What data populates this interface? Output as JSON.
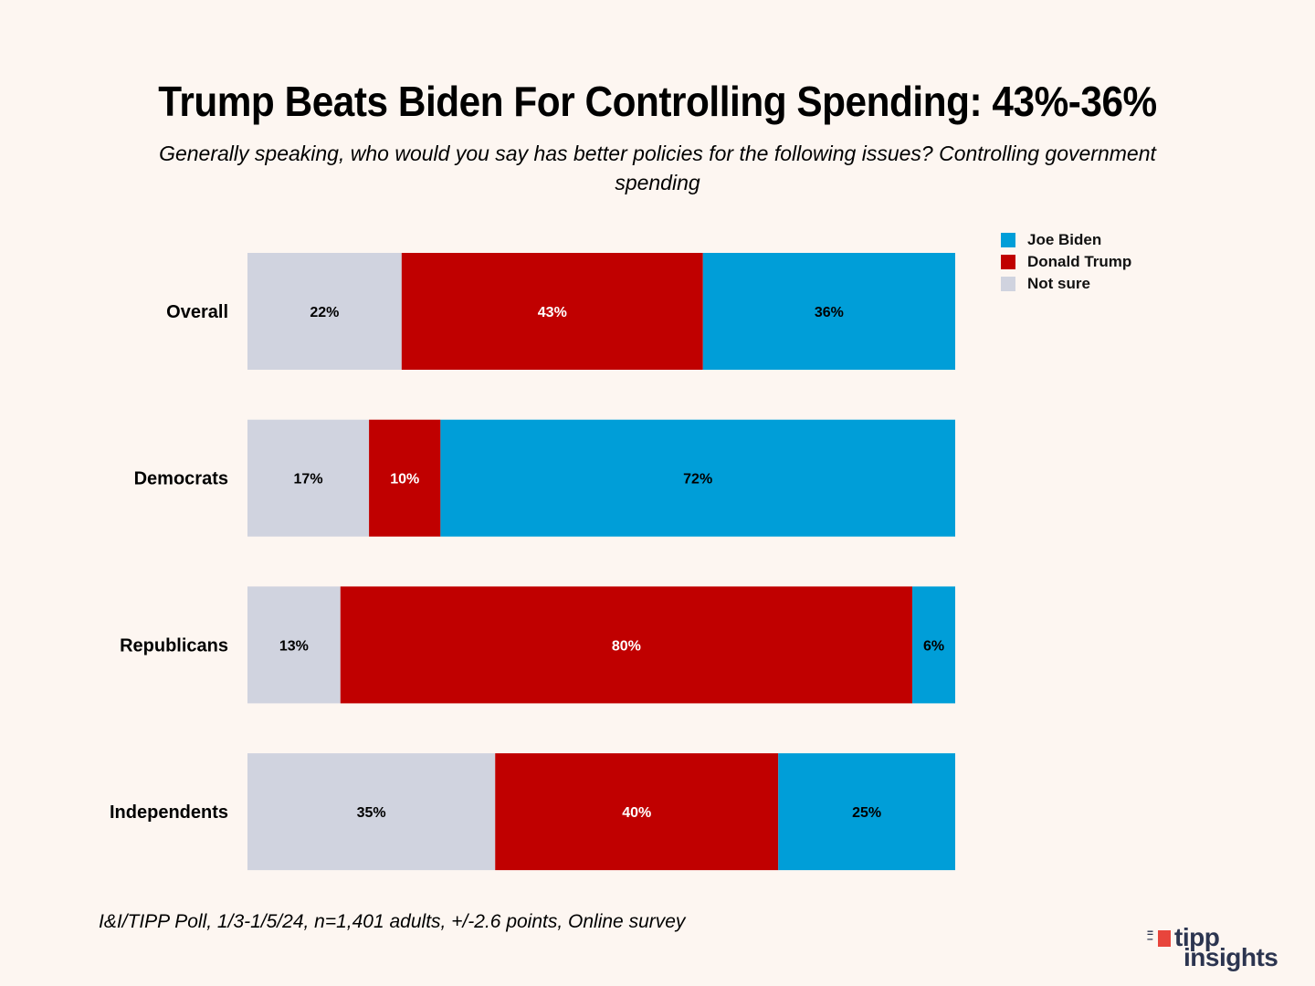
{
  "chart_data": {
    "type": "bar",
    "orientation": "horizontal",
    "stacked": true,
    "title": "Trump Beats Biden For Controlling Spending: 43%-36%",
    "subtitle": "Generally speaking, who would you say has better policies for the following issues? Controlling government spending",
    "categories": [
      "Overall",
      "Democrats",
      "Republicans",
      "Independents"
    ],
    "series": [
      {
        "name": "Not sure",
        "color": "#d0d3df",
        "label_color": "#000000",
        "values": [
          22,
          17,
          13,
          35
        ]
      },
      {
        "name": "Donald Trump",
        "color": "#c00000",
        "label_color": "#ffffff",
        "values": [
          43,
          10,
          80,
          40
        ]
      },
      {
        "name": "Joe Biden",
        "color": "#009ed8",
        "label_color": "#000000",
        "values": [
          36,
          72,
          6,
          25
        ]
      }
    ],
    "value_suffix": "%",
    "legend": {
      "position": "top-right",
      "entries": [
        "Joe Biden",
        "Donald Trump",
        "Not sure"
      ]
    },
    "xlabel": "",
    "ylabel": "",
    "grid": false
  },
  "legend_items": [
    {
      "label": "Joe Biden",
      "color": "#009ed8"
    },
    {
      "label": "Donald Trump",
      "color": "#c00000"
    },
    {
      "label": "Not sure",
      "color": "#d0d3df"
    }
  ],
  "source": "I&I/TIPP Poll, 1/3-1/5/24, n=1,401 adults, +/-2.6 points, Online survey",
  "logo": {
    "line1": "tipp",
    "line2": "insights"
  }
}
